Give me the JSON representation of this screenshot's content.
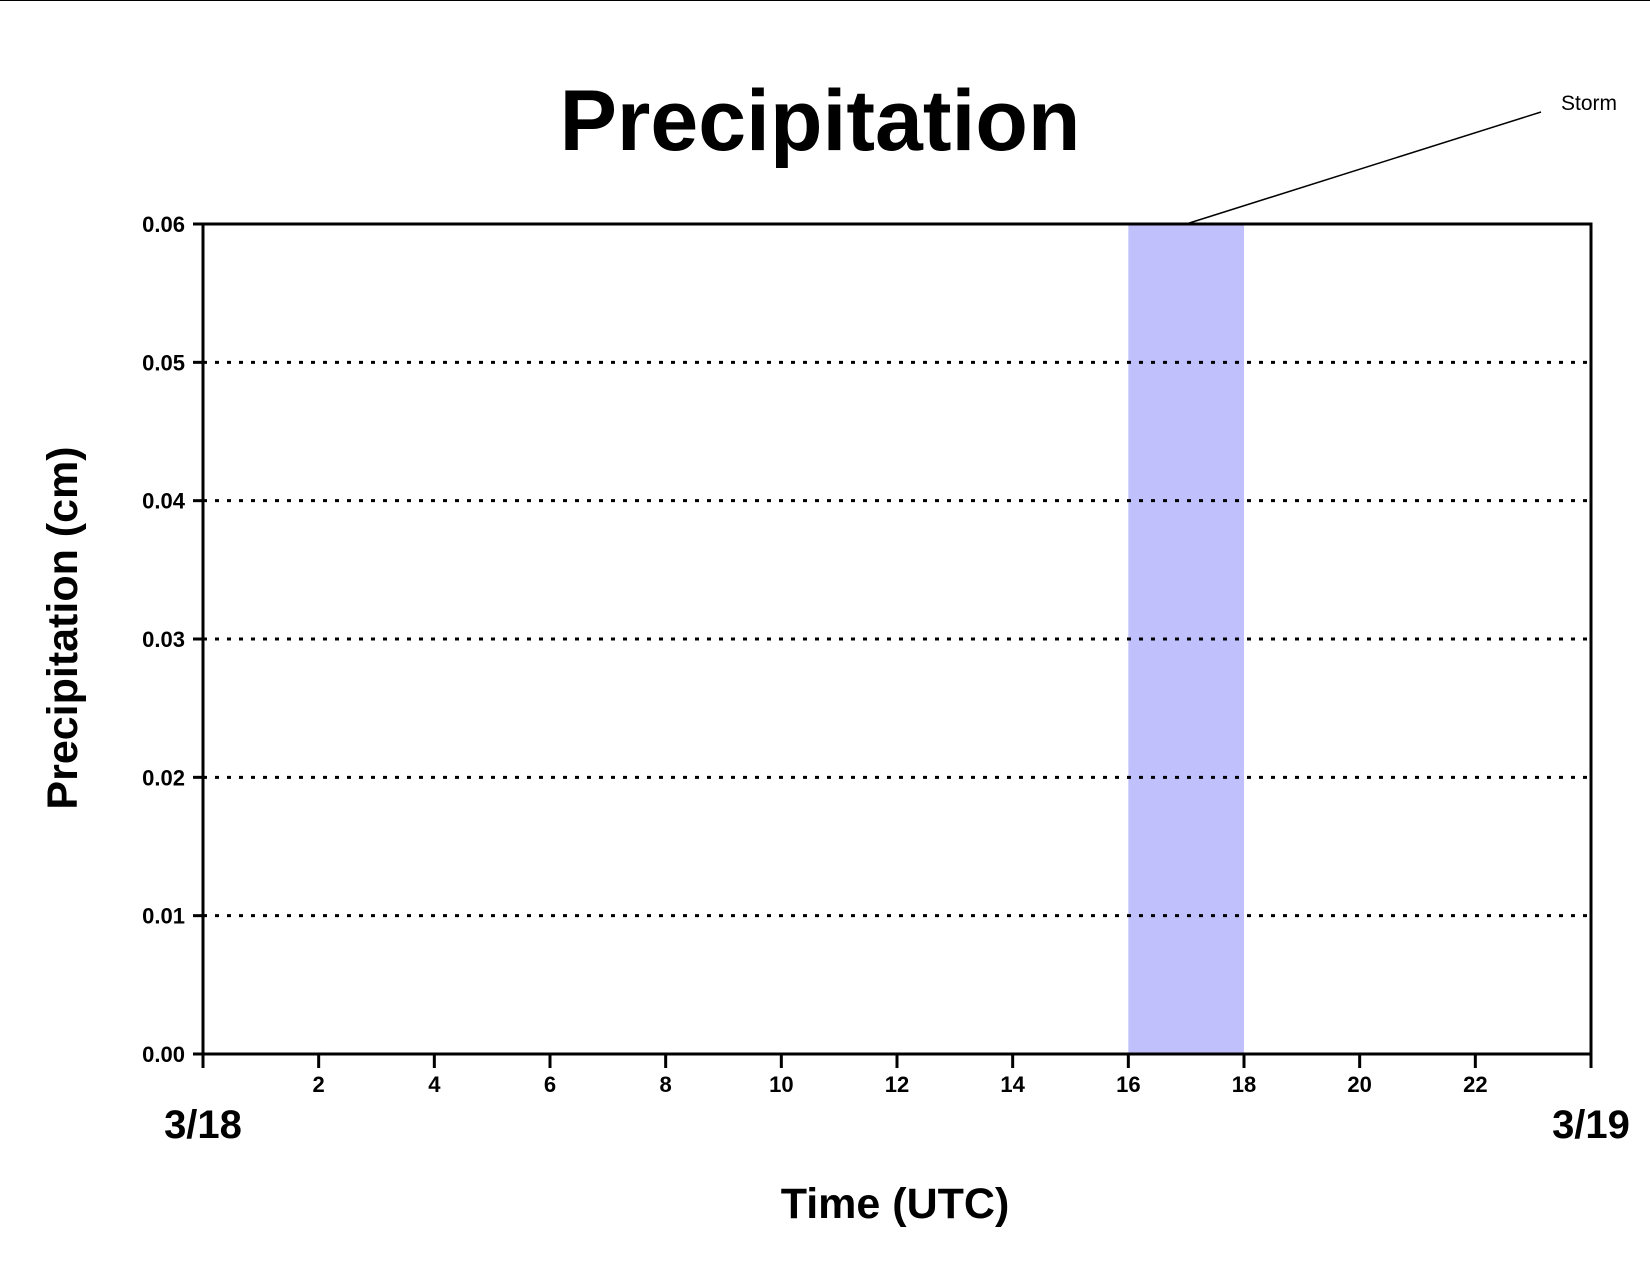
{
  "chart_data": {
    "type": "line",
    "title": "Precipitation",
    "xlabel": "Time (UTC)",
    "ylabel": "Precipitation (cm)",
    "xlim": [
      0,
      24
    ],
    "ylim": [
      0,
      0.06
    ],
    "x_ticks": [
      {
        "value": 2,
        "label": "2"
      },
      {
        "value": 4,
        "label": "4"
      },
      {
        "value": 6,
        "label": "6"
      },
      {
        "value": 8,
        "label": "8"
      },
      {
        "value": 10,
        "label": "10"
      },
      {
        "value": 12,
        "label": "12"
      },
      {
        "value": 14,
        "label": "14"
      },
      {
        "value": 16,
        "label": "16"
      },
      {
        "value": 18,
        "label": "18"
      },
      {
        "value": 20,
        "label": "20"
      },
      {
        "value": 22,
        "label": "22"
      }
    ],
    "y_ticks": [
      {
        "value": 0,
        "label": "0.00"
      },
      {
        "value": 0.01,
        "label": "0.01"
      },
      {
        "value": 0.02,
        "label": "0.02"
      },
      {
        "value": 0.03,
        "label": "0.03"
      },
      {
        "value": 0.04,
        "label": "0.04"
      },
      {
        "value": 0.05,
        "label": "0.05"
      },
      {
        "value": 0.06,
        "label": "0.06"
      }
    ],
    "date_labels": [
      {
        "value": 0,
        "label": "3/18"
      },
      {
        "value": 24,
        "label": "3/19"
      }
    ],
    "grid": "horizontal dotted",
    "series": [
      {
        "color": "#8b0000",
        "x": [
          0,
          24
        ],
        "y": [
          0,
          0
        ]
      }
    ],
    "shaded_regions": [
      {
        "x_start": 16,
        "x_end": 18,
        "label": "Storm",
        "color": "#c0c0fc"
      }
    ]
  }
}
